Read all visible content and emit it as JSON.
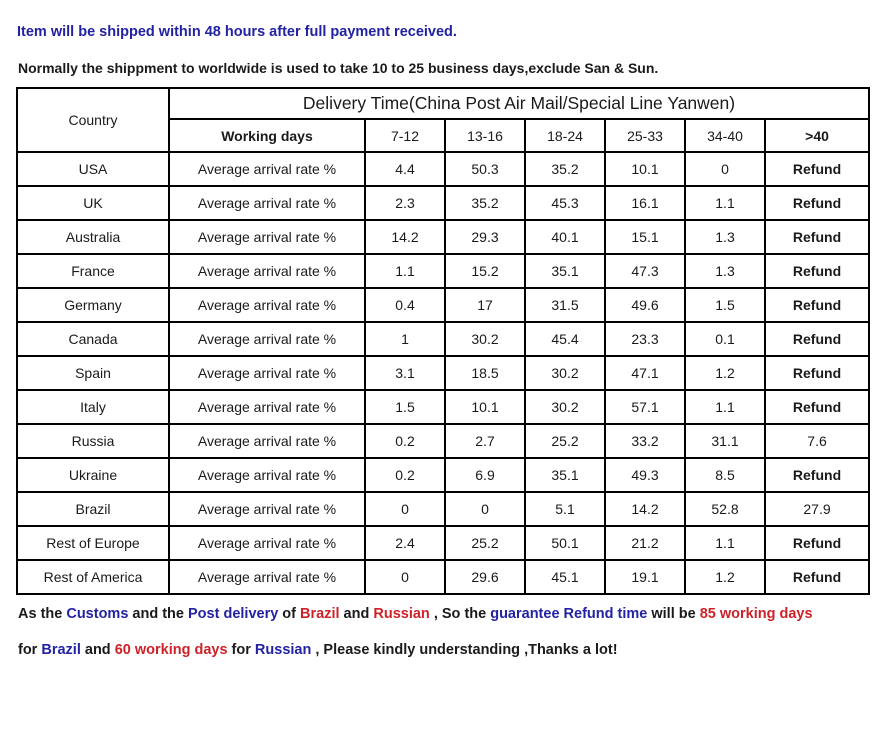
{
  "notes": {
    "line1": "Item will be shipped within 48 hours after full payment received.",
    "line2": "Normally the shippment to worldwide is used to take 10 to 25 business days,exclude San & Sun."
  },
  "table": {
    "country_header": "Country",
    "title": "Delivery Time(China Post Air Mail/Special Line Yanwen)",
    "working_days_label": "Working days",
    "ranges": [
      "7-12",
      "13-16",
      "18-24",
      "25-33",
      "34-40",
      ">40"
    ],
    "metric_label": "Average arrival rate %",
    "rows": [
      {
        "country": "USA",
        "values": [
          "4.4",
          "50.3",
          "35.2",
          "10.1",
          "0",
          "Refund"
        ]
      },
      {
        "country": "UK",
        "values": [
          "2.3",
          "35.2",
          "45.3",
          "16.1",
          "1.1",
          "Refund"
        ]
      },
      {
        "country": "Australia",
        "values": [
          "14.2",
          "29.3",
          "40.1",
          "15.1",
          "1.3",
          "Refund"
        ]
      },
      {
        "country": "France",
        "values": [
          "1.1",
          "15.2",
          "35.1",
          "47.3",
          "1.3",
          "Refund"
        ]
      },
      {
        "country": "Germany",
        "values": [
          "0.4",
          "17",
          "31.5",
          "49.6",
          "1.5",
          "Refund"
        ]
      },
      {
        "country": "Canada",
        "values": [
          "1",
          "30.2",
          "45.4",
          "23.3",
          "0.1",
          "Refund"
        ]
      },
      {
        "country": "Spain",
        "values": [
          "3.1",
          "18.5",
          "30.2",
          "47.1",
          "1.2",
          "Refund"
        ]
      },
      {
        "country": "Italy",
        "values": [
          "1.5",
          "10.1",
          "30.2",
          "57.1",
          "1.1",
          "Refund"
        ]
      },
      {
        "country": "Russia",
        "values": [
          "0.2",
          "2.7",
          "25.2",
          "33.2",
          "31.1",
          "7.6"
        ]
      },
      {
        "country": "Ukraine",
        "values": [
          "0.2",
          "6.9",
          "35.1",
          "49.3",
          "8.5",
          "Refund"
        ]
      },
      {
        "country": "Brazil",
        "values": [
          "0",
          "0",
          "5.1",
          "14.2",
          "52.8",
          "27.9"
        ]
      },
      {
        "country": "Rest of Europe",
        "values": [
          "2.4",
          "25.2",
          "50.1",
          "21.2",
          "1.1",
          "Refund"
        ]
      },
      {
        "country": "Rest of America",
        "values": [
          "0",
          "29.6",
          "45.1",
          "19.1",
          "1.2",
          "Refund"
        ]
      }
    ]
  },
  "footer": {
    "lines": [
      [
        {
          "text": "As the ",
          "color": "black"
        },
        {
          "text": "Customs",
          "color": "blue"
        },
        {
          "text": " and the ",
          "color": "black"
        },
        {
          "text": "Post delivery",
          "color": "blue"
        },
        {
          "text": " of ",
          "color": "black"
        },
        {
          "text": "Brazil",
          "color": "red"
        },
        {
          "text": " and ",
          "color": "black"
        },
        {
          "text": "Russian",
          "color": "red"
        },
        {
          "text": " , So the ",
          "color": "black"
        },
        {
          "text": "guarantee Refund time",
          "color": "blue"
        },
        {
          "text": " will be ",
          "color": "black"
        },
        {
          "text": "85 working days",
          "color": "red"
        }
      ],
      [
        {
          "text": "for ",
          "color": "black"
        },
        {
          "text": "Brazil",
          "color": "blue"
        },
        {
          "text": " and ",
          "color": "black"
        },
        {
          "text": "60 working days",
          "color": "red"
        },
        {
          "text": " for ",
          "color": "black"
        },
        {
          "text": "Russian",
          "color": "blue"
        },
        {
          "text": " , Please kindly understanding ,Thanks a lot!",
          "color": "black"
        }
      ]
    ]
  },
  "colors": {
    "accent_blue": "#2222a2",
    "accent_red": "#cc2229",
    "text_black": "#1a1a1a",
    "table_border": "#000000",
    "background": "#ffffff"
  }
}
